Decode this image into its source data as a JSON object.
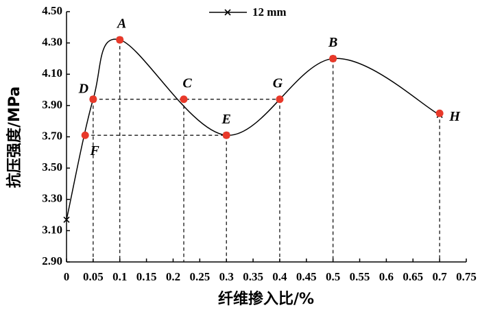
{
  "chart_data": {
    "type": "line",
    "x_label": "纤维掺入比/%",
    "y_label": "抗压强度/MPa",
    "x": [
      0,
      0.05,
      0.1,
      0.3,
      0.5,
      0.7
    ],
    "series": [
      {
        "name": "12 mm",
        "color": "#000000",
        "values": [
          3.17,
          3.94,
          4.32,
          3.71,
          4.2,
          3.84
        ]
      }
    ],
    "annotations": [
      {
        "label": "D",
        "x": 0.05,
        "y": 3.94
      },
      {
        "label": "F",
        "x": 0.035,
        "y": 3.71
      },
      {
        "label": "A",
        "x": 0.1,
        "y": 4.32
      },
      {
        "label": "C",
        "x": 0.22,
        "y": 3.94
      },
      {
        "label": "E",
        "x": 0.3,
        "y": 3.71
      },
      {
        "label": "G",
        "x": 0.4,
        "y": 3.94
      },
      {
        "label": "B",
        "x": 0.5,
        "y": 4.2
      },
      {
        "label": "H",
        "x": 0.7,
        "y": 3.85
      }
    ],
    "annotation_color": "#e8392a",
    "xlim": [
      0,
      0.75
    ],
    "xticks": [
      0,
      0.05,
      0.1,
      0.15,
      0.2,
      0.25,
      0.3,
      0.35,
      0.4,
      0.45,
      0.5,
      0.55,
      0.6,
      0.65,
      0.7,
      0.75
    ],
    "ylim": [
      2.9,
      4.5
    ],
    "yticks": [
      {
        "value": 2.9,
        "label": "2.90"
      },
      {
        "value": 3.1,
        "label": "3.10"
      },
      {
        "value": 3.3,
        "label": "3.30"
      },
      {
        "value": 3.5,
        "label": "3.50"
      },
      {
        "value": 3.7,
        "label": "3.70"
      },
      {
        "value": 3.9,
        "label": "3.90"
      },
      {
        "value": 4.1,
        "label": "4.10"
      },
      {
        "value": 4.3,
        "label": "4.30"
      },
      {
        "value": 4.5,
        "label": "4.50"
      }
    ],
    "grid": false
  }
}
